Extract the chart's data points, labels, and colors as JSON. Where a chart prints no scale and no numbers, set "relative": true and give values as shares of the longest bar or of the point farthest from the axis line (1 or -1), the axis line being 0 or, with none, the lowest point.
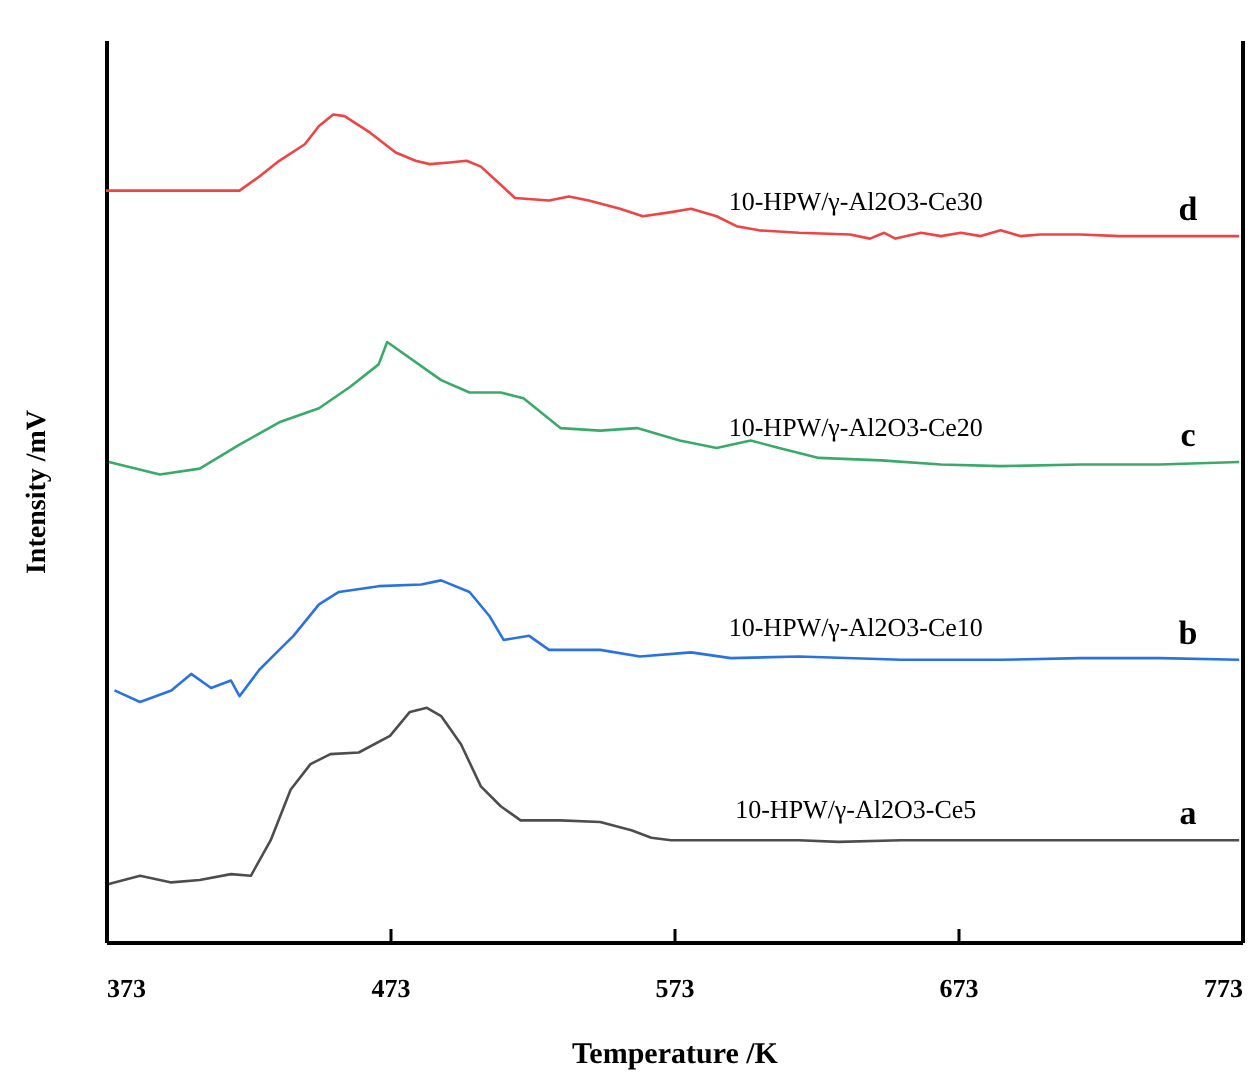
{
  "chart_data": {
    "type": "line",
    "relative": true,
    "xlabel": "Temperature /K",
    "ylabel": "Intensity /mV",
    "xlim": [
      373,
      773
    ],
    "xticks": [
      373,
      473,
      573,
      673,
      773
    ],
    "series": [
      {
        "name": "10-HPW/γ-Al2O3-Ce5",
        "color": "#4d4d4d",
        "x": [
          374,
          385,
          396,
          406,
          417,
          424,
          431,
          438,
          445,
          452,
          462,
          473,
          480,
          486,
          491,
          498,
          505,
          512,
          519,
          533,
          547,
          558,
          565,
          572,
          617,
          631,
          653,
          688,
          723,
          772
        ],
        "values": [
          0.07,
          0.08,
          0.072,
          0.075,
          0.082,
          0.08,
          0.123,
          0.184,
          0.215,
          0.227,
          0.229,
          0.249,
          0.278,
          0.283,
          0.273,
          0.239,
          0.188,
          0.164,
          0.147,
          0.147,
          0.145,
          0.135,
          0.126,
          0.123,
          0.123,
          0.121,
          0.123,
          0.123,
          0.123,
          0.123
        ]
      },
      {
        "name": "10-HPW/γ-Al2O3-Ce10",
        "color": "#2a72e0",
        "x": [
          376,
          385,
          396,
          403,
          410,
          417,
          420,
          427,
          434,
          439,
          448,
          455,
          469,
          484,
          491,
          501,
          508,
          513,
          522,
          529,
          547,
          561,
          579,
          593,
          617,
          653,
          688,
          716,
          744,
          772
        ],
        "values": [
          0.304,
          0.29,
          0.304,
          0.324,
          0.307,
          0.316,
          0.297,
          0.329,
          0.353,
          0.37,
          0.408,
          0.423,
          0.43,
          0.432,
          0.437,
          0.423,
          0.394,
          0.365,
          0.37,
          0.353,
          0.353,
          0.345,
          0.35,
          0.343,
          0.345,
          0.341,
          0.341,
          0.343,
          0.343,
          0.341
        ]
      },
      {
        "name": "10-HPW/γ-Al2O3-Ce20",
        "color": "#3aaa6a",
        "x": [
          374,
          392,
          406,
          420,
          434,
          448,
          459,
          469,
          472,
          491,
          501,
          512,
          520,
          533,
          547,
          560,
          575,
          588,
          600,
          610,
          624,
          646,
          667,
          688,
          716,
          744,
          772
        ],
        "values": [
          0.58,
          0.565,
          0.572,
          0.601,
          0.628,
          0.645,
          0.671,
          0.698,
          0.725,
          0.679,
          0.664,
          0.664,
          0.657,
          0.621,
          0.618,
          0.621,
          0.606,
          0.597,
          0.606,
          0.597,
          0.585,
          0.582,
          0.577,
          0.575,
          0.577,
          0.577,
          0.58
        ]
      },
      {
        "name": "10-HPW/γ-Al2O3-Ce30",
        "color": "#ee4444",
        "x": [
          373,
          420,
          427,
          434,
          443,
          448,
          453,
          457,
          466,
          475,
          482,
          487,
          494,
          500,
          505,
          512,
          517,
          529,
          536,
          543,
          554,
          562,
          572,
          579,
          588,
          595,
          603,
          617,
          635,
          642,
          647,
          651,
          660,
          667,
          674,
          681,
          688,
          695,
          702,
          716,
          730,
          744,
          772
        ],
        "values": [
          0.908,
          0.908,
          0.925,
          0.944,
          0.964,
          0.986,
          1,
          0.998,
          0.978,
          0.954,
          0.944,
          0.94,
          0.942,
          0.944,
          0.937,
          0.915,
          0.899,
          0.896,
          0.901,
          0.896,
          0.886,
          0.877,
          0.882,
          0.886,
          0.877,
          0.865,
          0.86,
          0.857,
          0.855,
          0.85,
          0.857,
          0.85,
          0.857,
          0.853,
          0.857,
          0.853,
          0.86,
          0.853,
          0.855,
          0.855,
          0.853,
          0.853,
          0.853
        ]
      }
    ],
    "annotations": [
      "a",
      "b",
      "c",
      "d"
    ]
  }
}
